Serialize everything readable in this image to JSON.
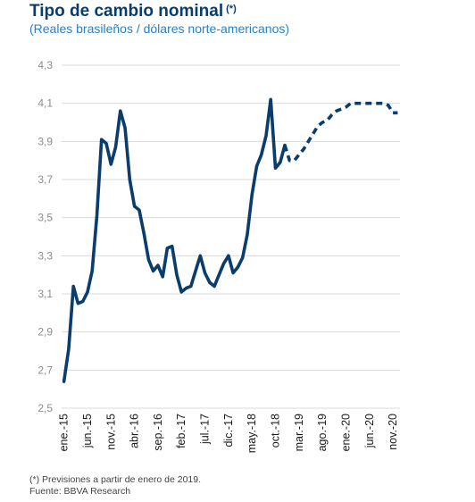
{
  "header": {
    "title": "Tipo de cambio nominal",
    "title_mark": "(*)",
    "subtitle": "(Reales brasileños / dólares norte-americanos)"
  },
  "footer": {
    "note": "(*) Previsiones a partir de enero de 2019.",
    "source": "Fuente: BBVA Research"
  },
  "chart_data": {
    "type": "line",
    "title": "Tipo de cambio nominal",
    "subtitle": "(Reales brasileños / dólares norte-americanos)",
    "ylim": [
      2.5,
      4.3
    ],
    "y_ticks": [
      "2,5",
      "2,7",
      "2,9",
      "3,1",
      "3,3",
      "3,5",
      "3,7",
      "3,9",
      "4,1",
      "4,3"
    ],
    "x_tick_labels": [
      "ene.-15",
      "jun.-15",
      "nov.-15",
      "abr.-16",
      "sep.-16",
      "feb.-17",
      "jul.-17",
      "dic.-17",
      "may.-18",
      "oct.-18",
      "mar.-19",
      "ago.-19",
      "ene.-20",
      "jun.-20",
      "nov.-20"
    ],
    "grid": true,
    "line_color": "#0a3d6b",
    "series": [
      {
        "style": "solid",
        "x": [
          "ene.-15",
          "feb.-15",
          "mar.-15",
          "abr.-15",
          "may.-15",
          "jun.-15",
          "jul.-15",
          "ago.-15",
          "sep.-15",
          "oct.-15",
          "nov.-15",
          "dic.-15",
          "ene.-16",
          "feb.-16",
          "mar.-16",
          "abr.-16",
          "may.-16",
          "jun.-16",
          "jul.-16",
          "ago.-16",
          "sep.-16",
          "oct.-16",
          "nov.-16",
          "dic.-16",
          "ene.-17",
          "feb.-17",
          "mar.-17",
          "abr.-17",
          "may.-17",
          "jun.-17",
          "jul.-17",
          "ago.-17",
          "sep.-17",
          "oct.-17",
          "nov.-17",
          "dic.-17",
          "ene.-18",
          "feb.-18",
          "mar.-18",
          "abr.-18",
          "may.-18",
          "jun.-18",
          "jul.-18",
          "ago.-18",
          "sep.-18",
          "oct.-18",
          "nov.-18",
          "dic.-18"
        ],
        "values": [
          2.64,
          2.81,
          3.14,
          3.05,
          3.06,
          3.11,
          3.22,
          3.51,
          3.91,
          3.89,
          3.78,
          3.87,
          4.06,
          3.97,
          3.7,
          3.56,
          3.54,
          3.42,
          3.28,
          3.22,
          3.25,
          3.19,
          3.34,
          3.35,
          3.2,
          3.11,
          3.13,
          3.14,
          3.22,
          3.3,
          3.21,
          3.16,
          3.14,
          3.2,
          3.26,
          3.3,
          3.21,
          3.24,
          3.29,
          3.41,
          3.62,
          3.77,
          3.83,
          3.93,
          4.12,
          3.76,
          3.79,
          3.88
        ]
      },
      {
        "style": "dashed",
        "x": [
          "dic.-18",
          "ene.-19",
          "feb.-19",
          "mar.-19",
          "abr.-19",
          "may.-19",
          "jun.-19",
          "jul.-19",
          "ago.-19",
          "sep.-19",
          "oct.-19",
          "nov.-19",
          "dic.-19",
          "ene.-20",
          "feb.-20",
          "mar.-20",
          "abr.-20",
          "may.-20",
          "jun.-20",
          "jul.-20",
          "ago.-20",
          "sep.-20",
          "oct.-20",
          "nov.-20",
          "dic.-20"
        ],
        "values": [
          3.88,
          3.8,
          3.8,
          3.83,
          3.86,
          3.9,
          3.94,
          3.98,
          4.0,
          4.01,
          4.04,
          4.06,
          4.07,
          4.08,
          4.1,
          4.1,
          4.1,
          4.1,
          4.1,
          4.1,
          4.1,
          4.1,
          4.09,
          4.05,
          4.05
        ]
      }
    ]
  }
}
